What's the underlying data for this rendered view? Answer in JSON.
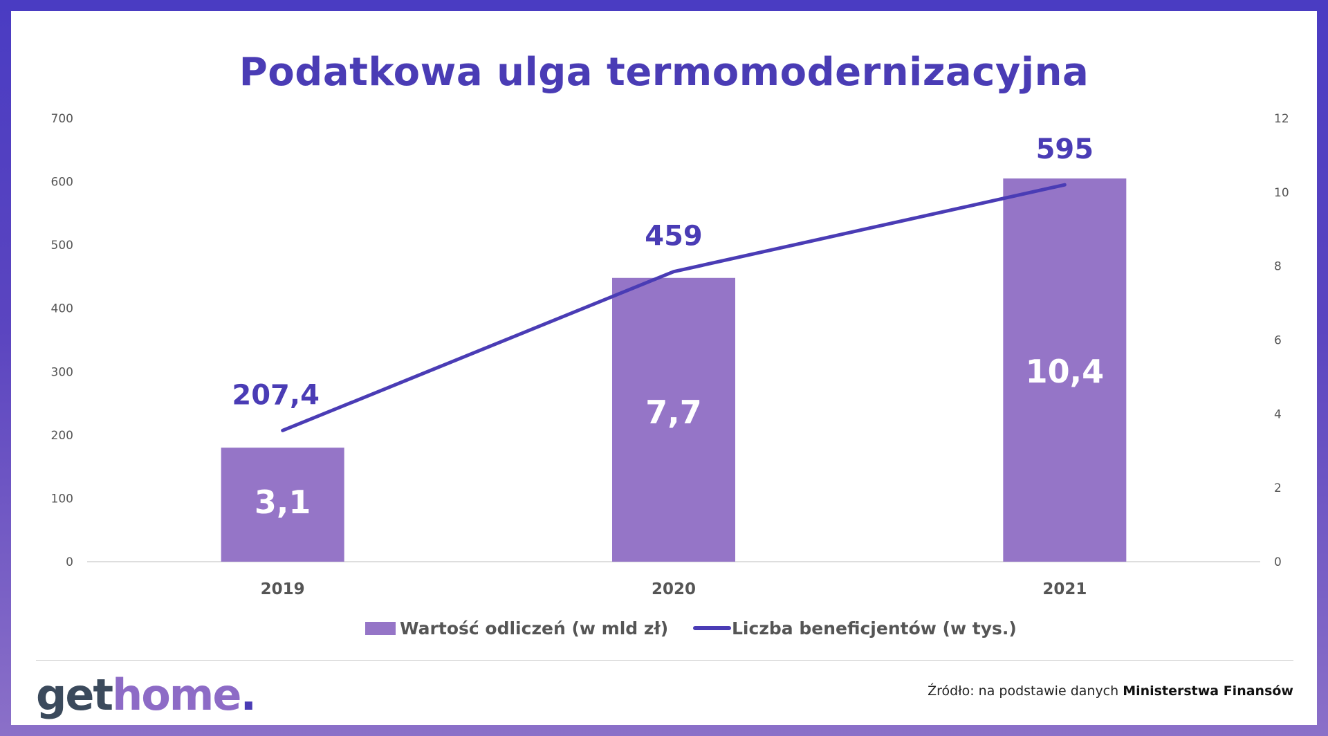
{
  "title": "Podatkowa ulga termomodernizacyjna",
  "chart_data": {
    "type": "bar",
    "categories": [
      "2019",
      "2020",
      "2021"
    ],
    "y_left": {
      "ylim": [
        0,
        700
      ],
      "ticks": [
        "0",
        "100",
        "200",
        "300",
        "400",
        "500",
        "600",
        "700"
      ]
    },
    "y_right": {
      "ylim": [
        0,
        12
      ],
      "ticks": [
        "0",
        "2",
        "4",
        "6",
        "8",
        "10",
        "12"
      ]
    },
    "series": [
      {
        "name": "Wartość odliczeń (w mld zł)",
        "kind": "bar",
        "axis": "left",
        "values": [
          180,
          448,
          605
        ],
        "labels": [
          "3,1",
          "7,7",
          "10,4"
        ],
        "color": "#9575c7"
      },
      {
        "name": "Liczba beneficjentów (w tys.)",
        "kind": "line",
        "axis": "right",
        "values": [
          3.55,
          7.85,
          10.2
        ],
        "labels": [
          "207,4",
          "459",
          "595"
        ],
        "color": "#4a3cb5"
      }
    ],
    "legend": "bottom",
    "grid": false
  },
  "footer": {
    "logo": {
      "part1": "get",
      "part2": "home",
      "part3": "."
    },
    "source_prefix": "Źródło: na podstawie danych ",
    "source_bold": "Ministerstwa Finansów"
  }
}
